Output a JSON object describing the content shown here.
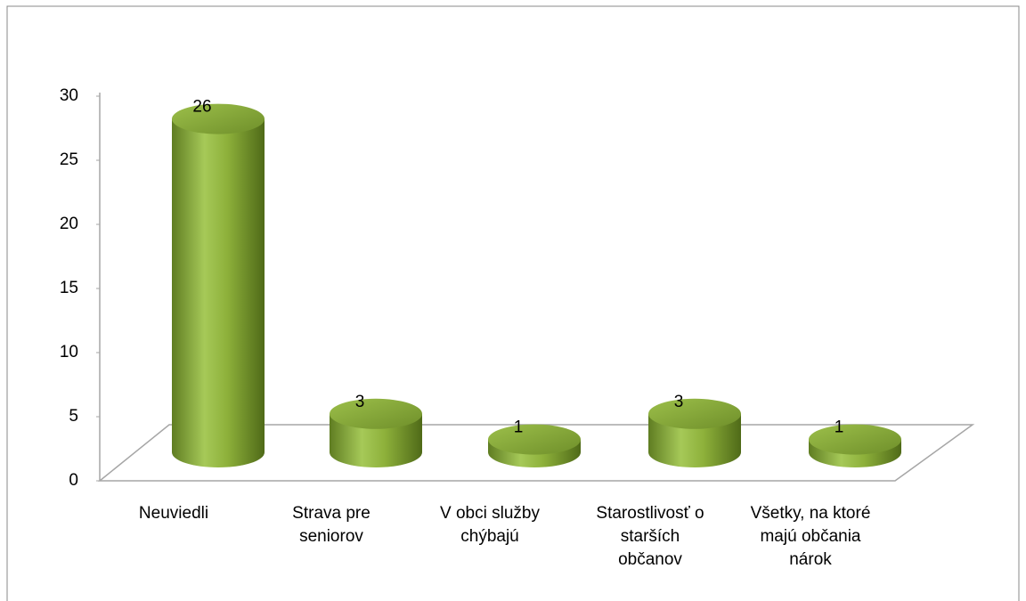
{
  "chart_data": {
    "type": "cylinder",
    "categories": [
      "Neuviedli",
      "Strava pre seniorov",
      "V obci služby chýbajú",
      "Starostlivosť o starších občanov",
      "Všetky, na ktoré majú občania nárok"
    ],
    "values": [
      26,
      3,
      1,
      3,
      1
    ],
    "color": "#8db03a",
    "ylim": [
      0,
      30
    ],
    "yticks": [
      0,
      5,
      10,
      15,
      20,
      25,
      30
    ]
  }
}
